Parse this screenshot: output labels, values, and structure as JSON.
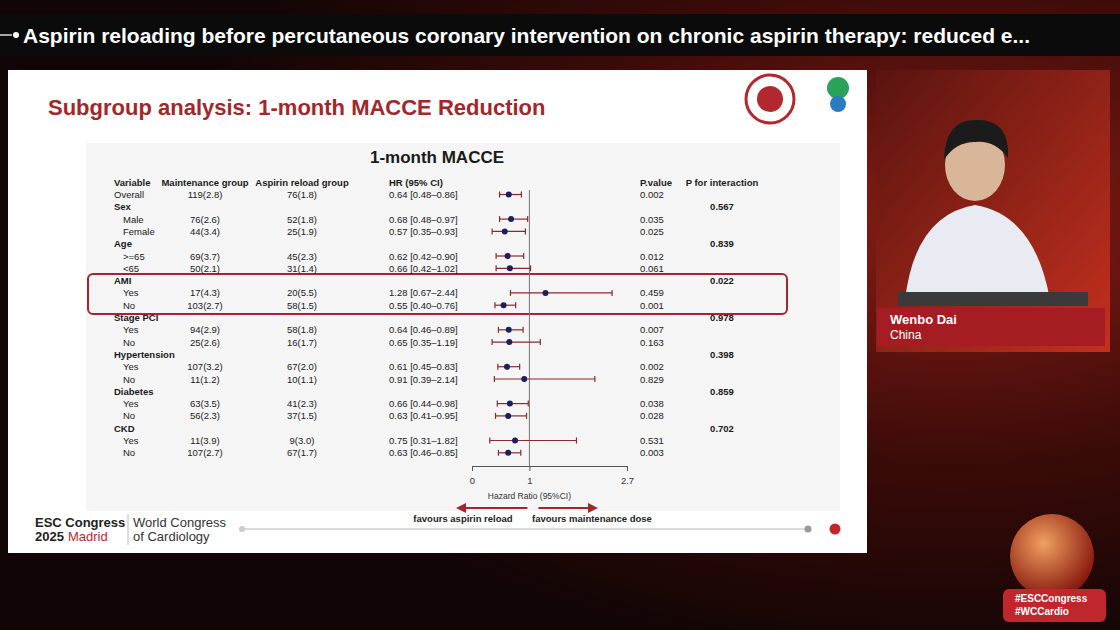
{
  "banner": "Aspirin reloading before percutaneous coronary intervention on chronic aspirin therapy: reduced e...",
  "slide_title": "Subgroup analysis: 1-month MACCE Reduction",
  "congress": {
    "name": "ESC Congress",
    "year": "2025",
    "city": "Madrid",
    "partner": [
      "World Congress",
      "of Cardiology"
    ]
  },
  "speaker": {
    "name": "Wenbo Dai",
    "country": "China"
  },
  "hashtags": [
    "#ESCCongress",
    "#WCCardio"
  ],
  "chart_data": {
    "type": "forest",
    "title": "1-month MACCE",
    "columns": [
      "Variable",
      "Maintenance group",
      "Aspirin reload group",
      "HR (95% CI)",
      "P.value",
      "P for interaction"
    ],
    "rows": [
      {
        "label": "Overall",
        "maintenance": "119(2.8)",
        "reload": "76(1.8)",
        "hr_ci": "0.64 [0.48–0.86]",
        "hr": 0.64,
        "ci": [
          0.48,
          0.86
        ],
        "p": "0.002"
      },
      {
        "label": "Sex",
        "p_interaction": "0.567"
      },
      {
        "label": "Male",
        "maintenance": "76(2.6)",
        "reload": "52(1.8)",
        "hr_ci": "0.68 [0.48–0.97]",
        "hr": 0.68,
        "ci": [
          0.48,
          0.97
        ],
        "p": "0.035"
      },
      {
        "label": "Female",
        "maintenance": "44(3.4)",
        "reload": "25(1.9)",
        "hr_ci": "0.57 [0.35–0.93]",
        "hr": 0.57,
        "ci": [
          0.35,
          0.93
        ],
        "p": "0.025"
      },
      {
        "label": "Age",
        "p_interaction": "0.839"
      },
      {
        "label": ">=65",
        "maintenance": "69(3.7)",
        "reload": "45(2.3)",
        "hr_ci": "0.62 [0.42–0.90]",
        "hr": 0.62,
        "ci": [
          0.42,
          0.9
        ],
        "p": "0.012"
      },
      {
        "label": "<65",
        "maintenance": "50(2.1)",
        "reload": "31(1.4)",
        "hr_ci": "0.66 [0.42–1.02]",
        "hr": 0.66,
        "ci": [
          0.42,
          1.02
        ],
        "p": "0.061"
      },
      {
        "label": "AMI",
        "p_interaction": "0.022",
        "highlighted": true
      },
      {
        "label": "Yes",
        "maintenance": "17(4.3)",
        "reload": "20(5.5)",
        "hr_ci": "1.28 [0.67–2.44]",
        "hr": 1.28,
        "ci": [
          0.67,
          2.44
        ],
        "p": "0.459"
      },
      {
        "label": "No",
        "maintenance": "103(2.7)",
        "reload": "58(1.5)",
        "hr_ci": "0.55 [0.40–0.76]",
        "hr": 0.55,
        "ci": [
          0.4,
          0.76
        ],
        "p": "0.001"
      },
      {
        "label": "Stage PCI",
        "p_interaction": "0.978"
      },
      {
        "label": "Yes",
        "maintenance": "94(2.9)",
        "reload": "58(1.8)",
        "hr_ci": "0.64 [0.46–0.89]",
        "hr": 0.64,
        "ci": [
          0.46,
          0.89
        ],
        "p": "0.007"
      },
      {
        "label": "No",
        "maintenance": "25(2.6)",
        "reload": "16(1.7)",
        "hr_ci": "0.65 [0.35–1.19]",
        "hr": 0.65,
        "ci": [
          0.35,
          1.19
        ],
        "p": "0.163"
      },
      {
        "label": "Hypertension",
        "p_interaction": "0.398"
      },
      {
        "label": "Yes",
        "maintenance": "107(3.2)",
        "reload": "67(2.0)",
        "hr_ci": "0.61 [0.45–0.83]",
        "hr": 0.61,
        "ci": [
          0.45,
          0.83
        ],
        "p": "0.002"
      },
      {
        "label": "No",
        "maintenance": "11(1.2)",
        "reload": "10(1.1)",
        "hr_ci": "0.91 [0.39–2.14]",
        "hr": 0.91,
        "ci": [
          0.39,
          2.14
        ],
        "p": "0.829"
      },
      {
        "label": "Diabetes",
        "p_interaction": "0.859"
      },
      {
        "label": "Yes",
        "maintenance": "63(3.5)",
        "reload": "41(2.3)",
        "hr_ci": "0.66 [0.44–0.98]",
        "hr": 0.66,
        "ci": [
          0.44,
          0.98
        ],
        "p": "0.038"
      },
      {
        "label": "No",
        "maintenance": "56(2.3)",
        "reload": "37(1.5)",
        "hr_ci": "0.63 [0.41–0.95]",
        "hr": 0.63,
        "ci": [
          0.41,
          0.95
        ],
        "p": "0.028"
      },
      {
        "label": "CKD",
        "p_interaction": "0.702"
      },
      {
        "label": "Yes",
        "maintenance": "11(3.9)",
        "reload": "9(3.0)",
        "hr_ci": "0.75 [0.31–1.82]",
        "hr": 0.75,
        "ci": [
          0.31,
          1.82
        ],
        "p": "0.531"
      },
      {
        "label": "No",
        "maintenance": "107(2.7)",
        "reload": "67(1.7)",
        "hr_ci": "0.63 [0.46–0.85]",
        "hr": 0.63,
        "ci": [
          0.46,
          0.85
        ],
        "p": "0.003"
      }
    ],
    "xlim": [
      0,
      2.7
    ],
    "xticks": [
      0,
      1,
      2.7
    ],
    "x_label": "Hazard Ratio (95%CI)",
    "reference_line": 1,
    "annotations": [
      "favours aspirin reload",
      "favours maintenance dose"
    ]
  }
}
